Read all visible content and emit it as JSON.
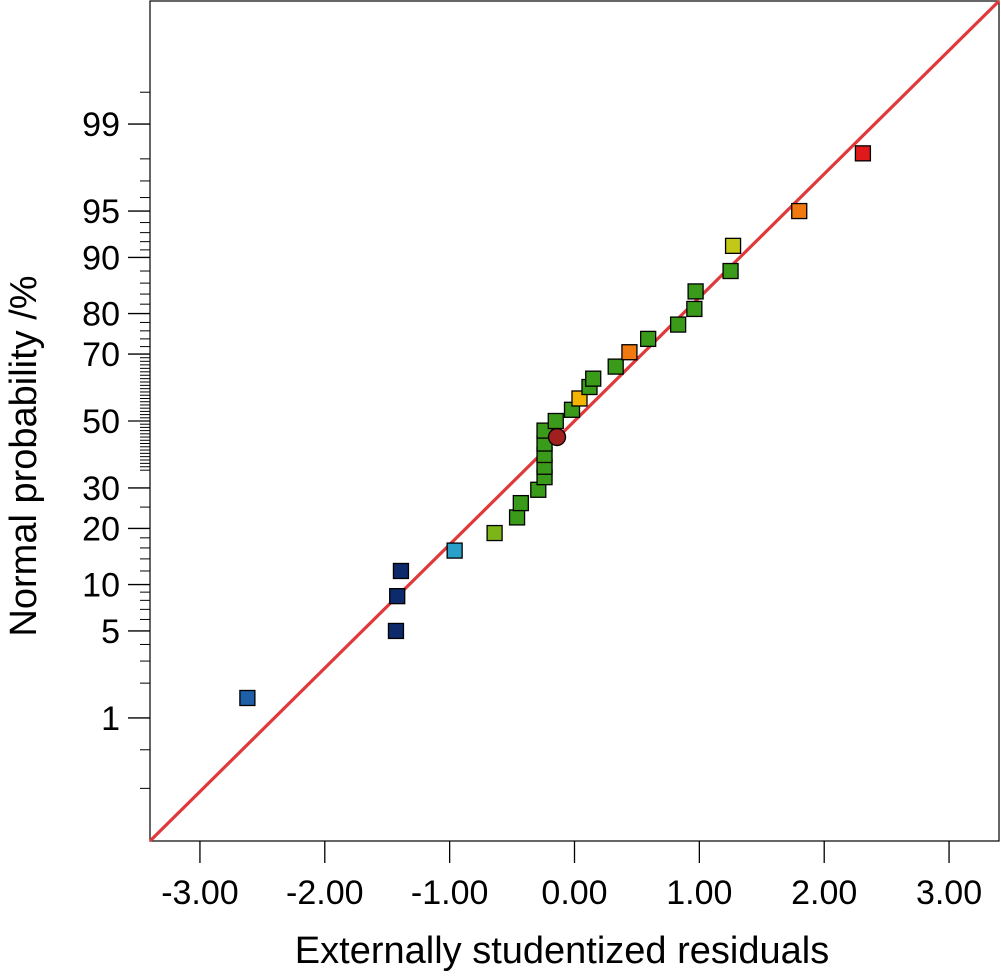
{
  "chart_data": {
    "type": "scatter",
    "title": "",
    "xlabel": "Externally studentized residuals",
    "ylabel": "Normal probability /%",
    "xlim": [
      -3.4,
      3.4
    ],
    "ylim_probability_pct": [
      0.05,
      99.95
    ],
    "y_scale": "normal-probability",
    "grid": false,
    "x_ticks": [
      {
        "value": -3,
        "label": "-3.00"
      },
      {
        "value": -2,
        "label": "-2.00"
      },
      {
        "value": -1,
        "label": "-1.00"
      },
      {
        "value": 0,
        "label": "0.00"
      },
      {
        "value": 1,
        "label": "1.00"
      },
      {
        "value": 2,
        "label": "2.00"
      },
      {
        "value": 3,
        "label": "3.00"
      }
    ],
    "y_ticks": [
      {
        "value": 1,
        "label": "1"
      },
      {
        "value": 5,
        "label": "5"
      },
      {
        "value": 10,
        "label": "10"
      },
      {
        "value": 20,
        "label": "20"
      },
      {
        "value": 30,
        "label": "30"
      },
      {
        "value": 50,
        "label": "50"
      },
      {
        "value": 70,
        "label": "70"
      },
      {
        "value": 80,
        "label": "80"
      },
      {
        "value": 90,
        "label": "90"
      },
      {
        "value": 95,
        "label": "95"
      },
      {
        "value": 99,
        "label": "99"
      }
    ],
    "reference_line": {
      "color": "#e0393b",
      "x_points": [
        -3.4,
        3.4
      ],
      "prob_points": [
        0.05,
        99.95
      ]
    },
    "points": [
      {
        "x": -2.62,
        "p": 1.5,
        "color": "#1f5fa8",
        "marker": "square"
      },
      {
        "x": -1.43,
        "p": 5.0,
        "color": "#0d2a6b",
        "marker": "square"
      },
      {
        "x": -1.42,
        "p": 8.5,
        "color": "#0d2a6b",
        "marker": "square"
      },
      {
        "x": -1.39,
        "p": 12.0,
        "color": "#0d2a6b",
        "marker": "square"
      },
      {
        "x": -0.96,
        "p": 15.5,
        "color": "#2aa0c8",
        "marker": "square"
      },
      {
        "x": -0.64,
        "p": 19.0,
        "color": "#7cb518",
        "marker": "square"
      },
      {
        "x": -0.46,
        "p": 22.5,
        "color": "#3a9a1a",
        "marker": "square"
      },
      {
        "x": -0.43,
        "p": 26.0,
        "color": "#3a9a1a",
        "marker": "square"
      },
      {
        "x": -0.29,
        "p": 29.5,
        "color": "#3a9a1a",
        "marker": "square"
      },
      {
        "x": -0.24,
        "p": 33.0,
        "color": "#3a9a1a",
        "marker": "square"
      },
      {
        "x": -0.24,
        "p": 36.0,
        "color": "#3a9a1a",
        "marker": "square"
      },
      {
        "x": -0.24,
        "p": 39.5,
        "color": "#3a9a1a",
        "marker": "square"
      },
      {
        "x": -0.24,
        "p": 43.0,
        "color": "#3a9a1a",
        "marker": "square"
      },
      {
        "x": -0.24,
        "p": 47.0,
        "color": "#3a9a1a",
        "marker": "square"
      },
      {
        "x": -0.14,
        "p": 45.0,
        "color": "#a0201f",
        "marker": "circle"
      },
      {
        "x": -0.15,
        "p": 50.0,
        "color": "#3a9a1a",
        "marker": "square"
      },
      {
        "x": -0.02,
        "p": 53.5,
        "color": "#3a9a1a",
        "marker": "square"
      },
      {
        "x": 0.04,
        "p": 57.0,
        "color": "#f5b400",
        "marker": "square"
      },
      {
        "x": 0.12,
        "p": 60.5,
        "color": "#3a9a1a",
        "marker": "square"
      },
      {
        "x": 0.15,
        "p": 63.0,
        "color": "#3a9a1a",
        "marker": "square"
      },
      {
        "x": 0.33,
        "p": 66.5,
        "color": "#3a9a1a",
        "marker": "square"
      },
      {
        "x": 0.44,
        "p": 70.5,
        "color": "#f07a10",
        "marker": "square"
      },
      {
        "x": 0.59,
        "p": 74.0,
        "color": "#3a9a1a",
        "marker": "square"
      },
      {
        "x": 0.83,
        "p": 77.5,
        "color": "#3a9a1a",
        "marker": "square"
      },
      {
        "x": 0.96,
        "p": 81.0,
        "color": "#3a9a1a",
        "marker": "square"
      },
      {
        "x": 0.97,
        "p": 84.5,
        "color": "#3a9a1a",
        "marker": "square"
      },
      {
        "x": 1.25,
        "p": 88.0,
        "color": "#3a9a1a",
        "marker": "square"
      },
      {
        "x": 1.27,
        "p": 91.5,
        "color": "#c2c818",
        "marker": "square"
      },
      {
        "x": 1.8,
        "p": 95.0,
        "color": "#f07a10",
        "marker": "square"
      },
      {
        "x": 2.31,
        "p": 98.2,
        "color": "#e0191a",
        "marker": "square"
      }
    ]
  }
}
